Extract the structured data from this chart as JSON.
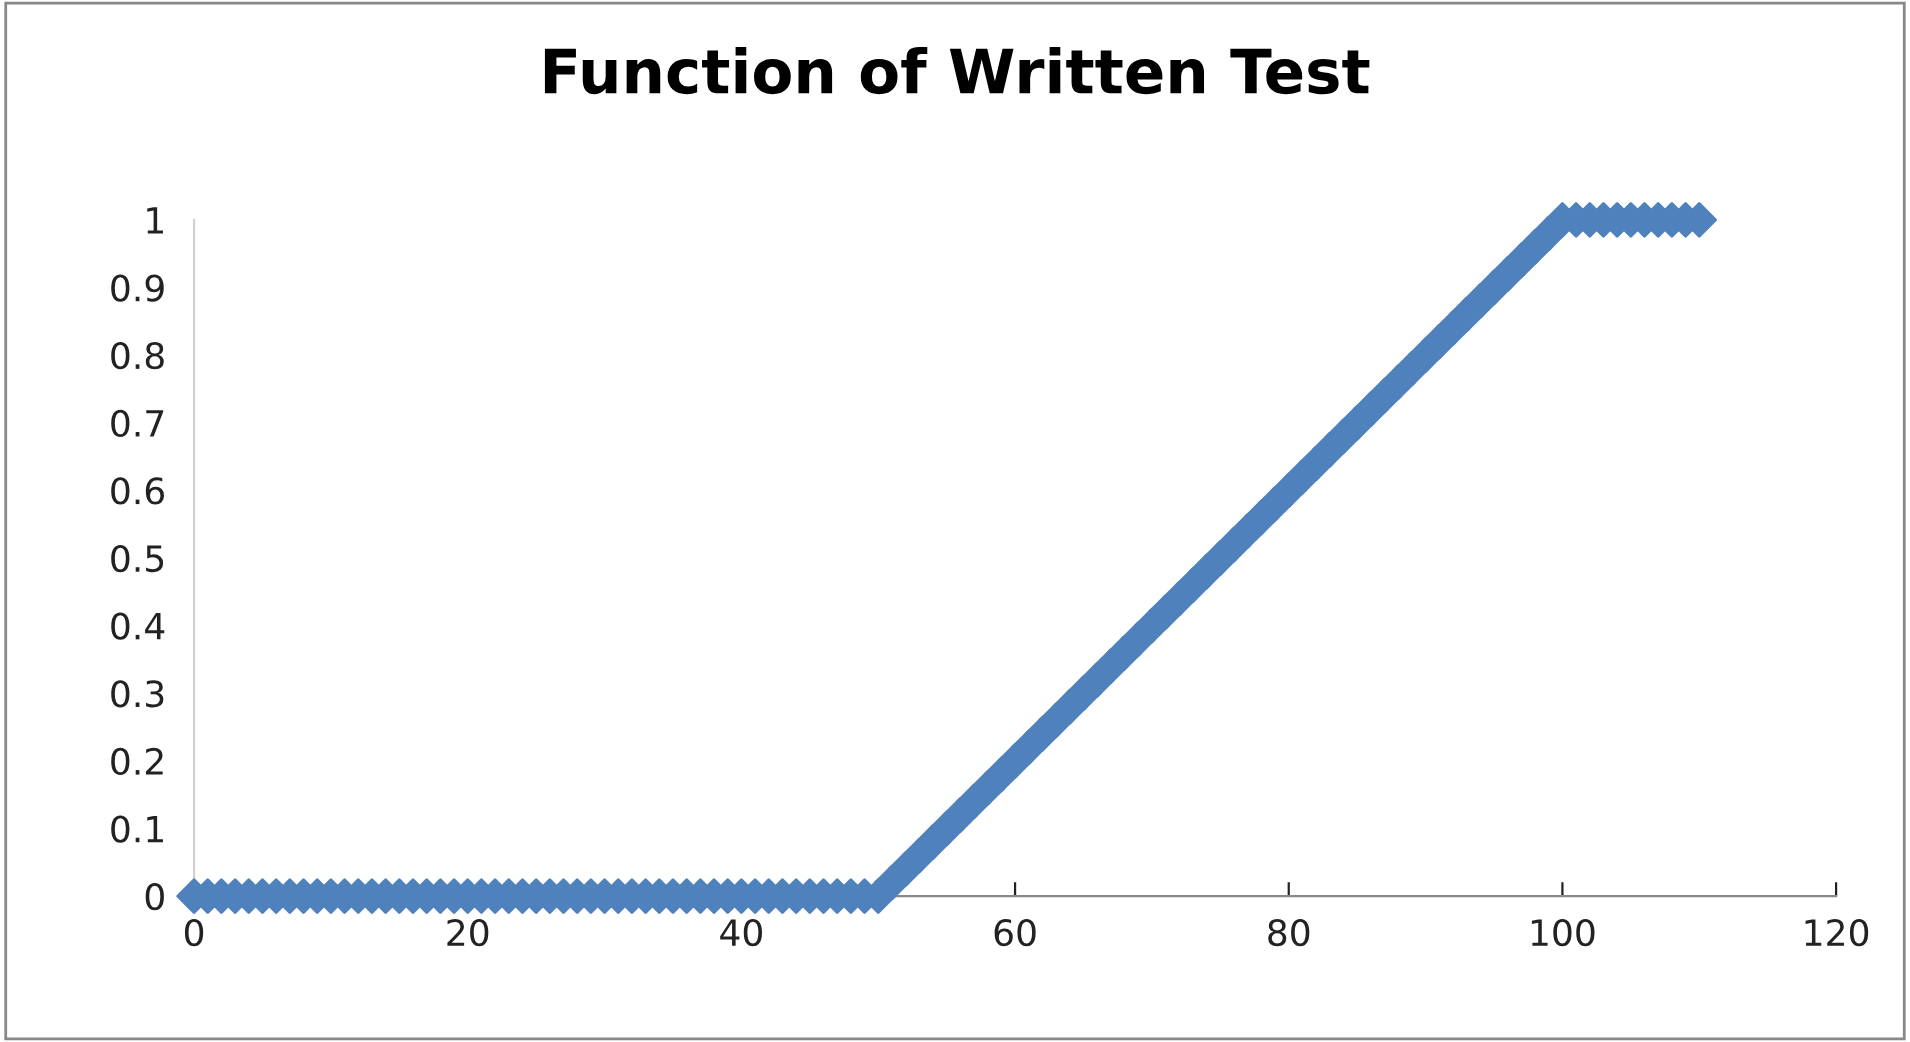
{
  "chart_data": {
    "type": "scatter",
    "title": "Function of Written Test",
    "x": [
      0,
      1,
      2,
      3,
      4,
      5,
      6,
      7,
      8,
      9,
      10,
      11,
      12,
      13,
      14,
      15,
      16,
      17,
      18,
      19,
      20,
      21,
      22,
      23,
      24,
      25,
      26,
      27,
      28,
      29,
      30,
      31,
      32,
      33,
      34,
      35,
      36,
      37,
      38,
      39,
      40,
      41,
      42,
      43,
      44,
      45,
      46,
      47,
      48,
      49,
      50,
      51,
      52,
      53,
      54,
      55,
      56,
      57,
      58,
      59,
      60,
      61,
      62,
      63,
      64,
      65,
      66,
      67,
      68,
      69,
      70,
      71,
      72,
      73,
      74,
      75,
      76,
      77,
      78,
      79,
      80,
      81,
      82,
      83,
      84,
      85,
      86,
      87,
      88,
      89,
      90,
      91,
      92,
      93,
      94,
      95,
      96,
      97,
      98,
      99,
      100,
      101,
      102,
      103,
      104,
      105,
      106,
      107,
      108,
      109,
      110
    ],
    "series": [
      {
        "color": "#4f81bd",
        "values": [
          0,
          0,
          0,
          0,
          0,
          0,
          0,
          0,
          0,
          0,
          0,
          0,
          0,
          0,
          0,
          0,
          0,
          0,
          0,
          0,
          0,
          0,
          0,
          0,
          0,
          0,
          0,
          0,
          0,
          0,
          0,
          0,
          0,
          0,
          0,
          0,
          0,
          0,
          0,
          0,
          0,
          0,
          0,
          0,
          0,
          0,
          0,
          0,
          0,
          0,
          0,
          0.02,
          0.04,
          0.06,
          0.08,
          0.1,
          0.12,
          0.14,
          0.16,
          0.18,
          0.2,
          0.22,
          0.24,
          0.26,
          0.28,
          0.3,
          0.32,
          0.34,
          0.36,
          0.38,
          0.4,
          0.42,
          0.44,
          0.46,
          0.48,
          0.5,
          0.52,
          0.54,
          0.56,
          0.58,
          0.6,
          0.62,
          0.64,
          0.66,
          0.68,
          0.7,
          0.72,
          0.74,
          0.76,
          0.78,
          0.8,
          0.82,
          0.84,
          0.86,
          0.88,
          0.9,
          0.92,
          0.94,
          0.96,
          0.98,
          1,
          1,
          1,
          1,
          1,
          1,
          1,
          1,
          1,
          1,
          1
        ]
      }
    ],
    "xlim": [
      0,
      120
    ],
    "xticks": [
      0,
      20,
      40,
      60,
      80,
      100,
      120
    ],
    "ylim": [
      0,
      1
    ],
    "yticks": [
      0,
      0.1,
      0.2,
      0.3,
      0.4,
      0.5,
      0.6,
      0.7,
      0.8,
      0.9,
      1
    ],
    "marker": "diamond",
    "grid": false,
    "legend": false
  }
}
